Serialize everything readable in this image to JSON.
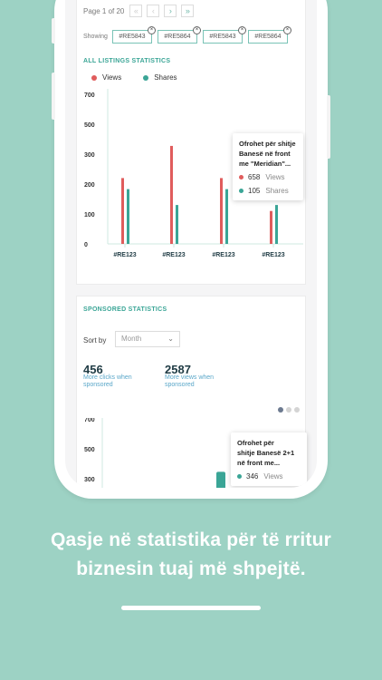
{
  "pagination": {
    "label": "Page 1 of 20",
    "first": "«",
    "prev": "‹",
    "next": "›",
    "last": "»"
  },
  "filter": {
    "label": "Showing",
    "tags": [
      "#RE5843",
      "#RE5864",
      "#RE5843",
      "#RE5864"
    ],
    "remove_glyph": "×"
  },
  "all_listings": {
    "title": "ALL LISTINGS STATISTICS",
    "legend": [
      {
        "name": "Views",
        "color": "#e05c5c"
      },
      {
        "name": "Shares",
        "color": "#3aa596"
      }
    ],
    "tooltip": {
      "title_lines": [
        "Ofrohet për shitje",
        "Banesë në front",
        "me \"Meridian\"..."
      ],
      "views_value": "658",
      "views_label": "Views",
      "shares_value": "105",
      "shares_label": "Shares"
    }
  },
  "chart_data": [
    {
      "type": "bar",
      "categories": [
        "#RE123",
        "#RE123",
        "#RE123",
        "#RE123"
      ],
      "series": [
        {
          "name": "Views",
          "values": [
            220,
            355,
            220,
            110
          ]
        },
        {
          "name": "Shares",
          "values": [
            183,
            130,
            183,
            130
          ]
        }
      ],
      "yticks": [
        0,
        100,
        200,
        300,
        500,
        700
      ],
      "ylim": [
        0,
        700
      ]
    },
    {
      "type": "bar",
      "categories": [
        ""
      ],
      "series": [
        {
          "name": "Views",
          "values": [
            346
          ]
        }
      ],
      "yticks": [
        300,
        500,
        700
      ],
      "ylim": [
        0,
        700
      ]
    }
  ],
  "sponsored": {
    "title": "SPONSORED STATISTICS",
    "sort_label": "Sort by",
    "sort_value": "Month",
    "stats": [
      {
        "value": "456",
        "label": "More clicks when sponsored"
      },
      {
        "value": "2587",
        "label": "More views when sponsored"
      }
    ],
    "tooltip": {
      "title_lines": [
        "Ofrohet për",
        "shitje Banesë 2+1",
        "në front me..."
      ],
      "views_value": "346",
      "views_label": "Views"
    }
  },
  "headline": [
    "Qasje në statistika për të rritur",
    "biznesin tuaj më shpejtë."
  ],
  "colors": {
    "background": "#9dd2c4",
    "accent": "#3aa596",
    "views": "#e05c5c",
    "shares": "#3aa596"
  }
}
